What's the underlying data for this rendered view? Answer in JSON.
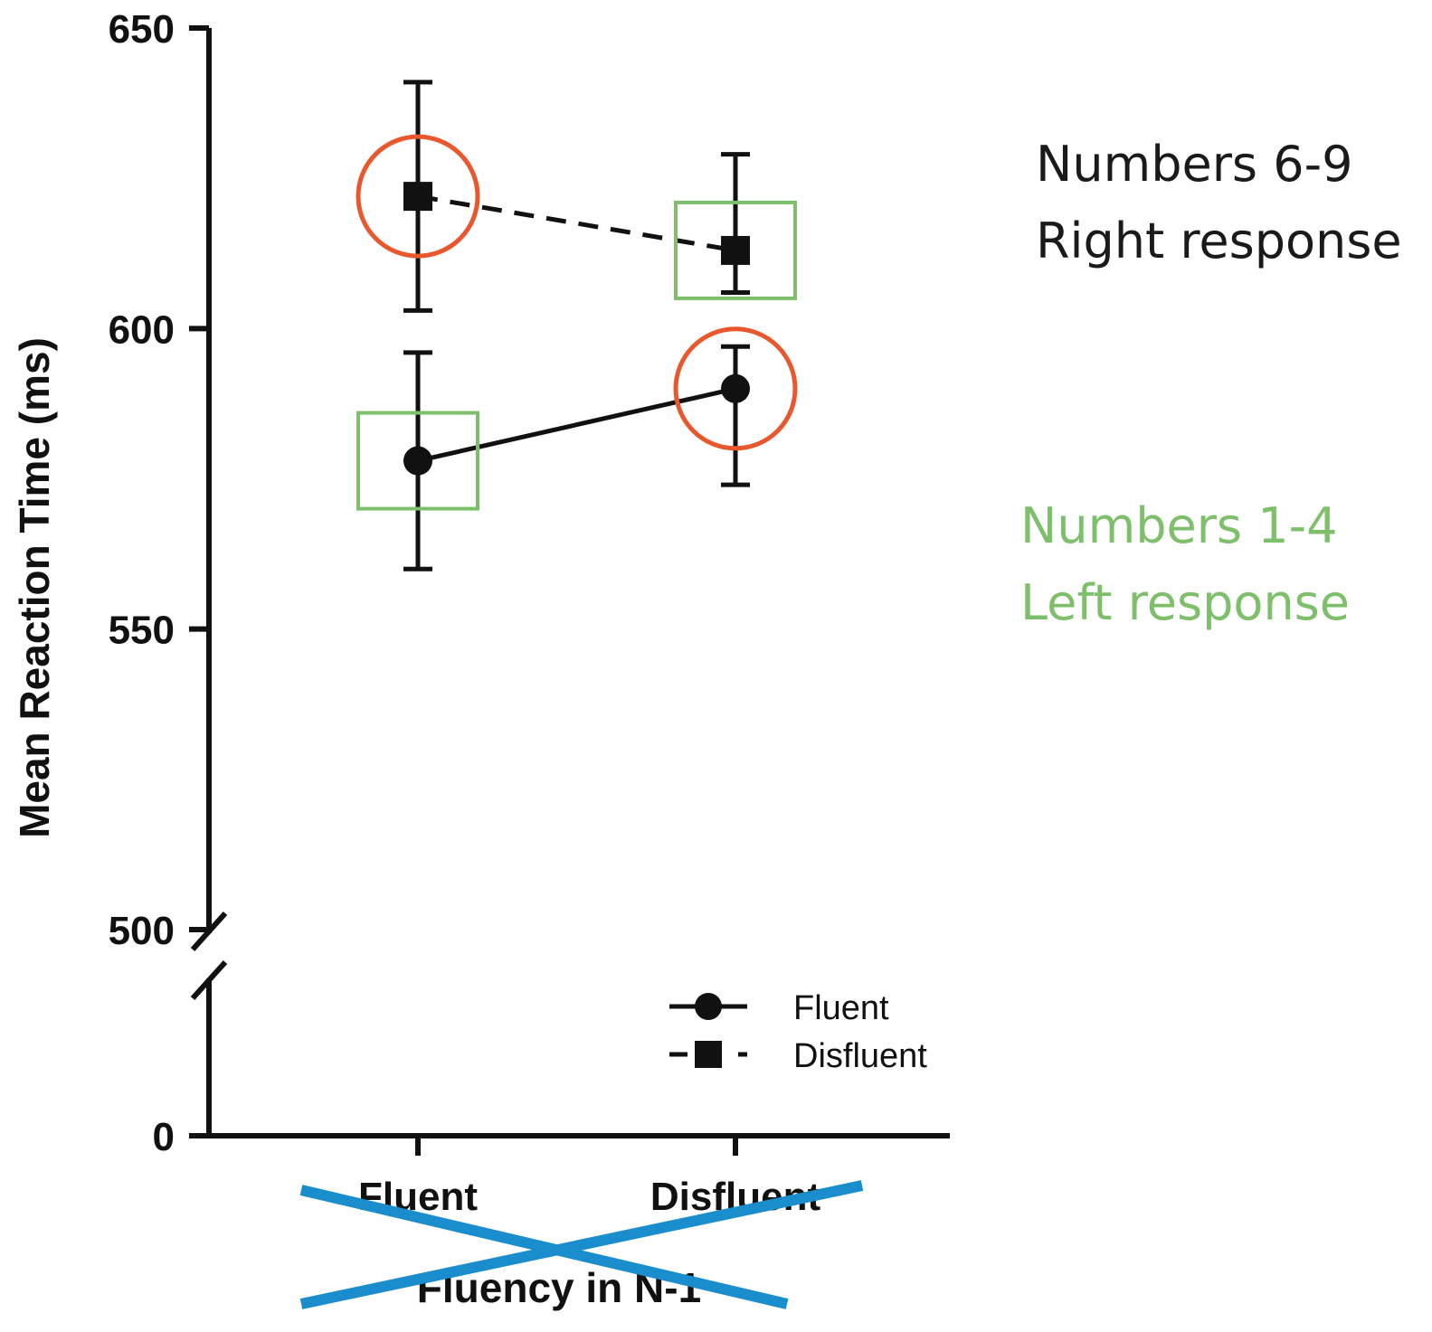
{
  "chart_data": {
    "type": "line",
    "title": "",
    "xlabel": "Fluency in N-1",
    "ylabel": "Mean Reaction Time (ms)",
    "categories": [
      "Fluent",
      "Disfluent"
    ],
    "ylim": [
      0,
      650
    ],
    "y_axis_break": [
      0,
      500
    ],
    "yticks": [
      "0",
      "500",
      "550",
      "600",
      "650"
    ],
    "legend_position": "bottom-right",
    "grid": false,
    "series": [
      {
        "name": "Fluent",
        "marker": "circle",
        "line_style": "solid",
        "values": [
          578,
          590
        ],
        "error": [
          [
            560,
            596
          ],
          [
            574,
            597
          ]
        ]
      },
      {
        "name": "Disfluent",
        "marker": "square",
        "line_style": "dashed",
        "values": [
          622,
          613
        ],
        "error": [
          [
            603,
            641
          ],
          [
            606,
            629
          ]
        ]
      }
    ],
    "annotations": [
      {
        "lines": [
          "Numbers 6-9",
          "Right response"
        ],
        "color": "#1a1a1a",
        "marker": "circle",
        "marker_color": "#e8582c",
        "highlights": [
          [
            "Disfluent",
            "Fluent"
          ],
          [
            "Fluent",
            "Disfluent"
          ]
        ]
      },
      {
        "lines": [
          "Numbers 1-4",
          "Left response"
        ],
        "color": "#7dbf6a",
        "marker": "square",
        "marker_color": "#7dbf6a",
        "highlights": [
          [
            "Fluent",
            "Fluent"
          ],
          [
            "Disfluent",
            "Disfluent"
          ]
        ]
      }
    ],
    "strike_through_color": "#1a8dcc"
  }
}
